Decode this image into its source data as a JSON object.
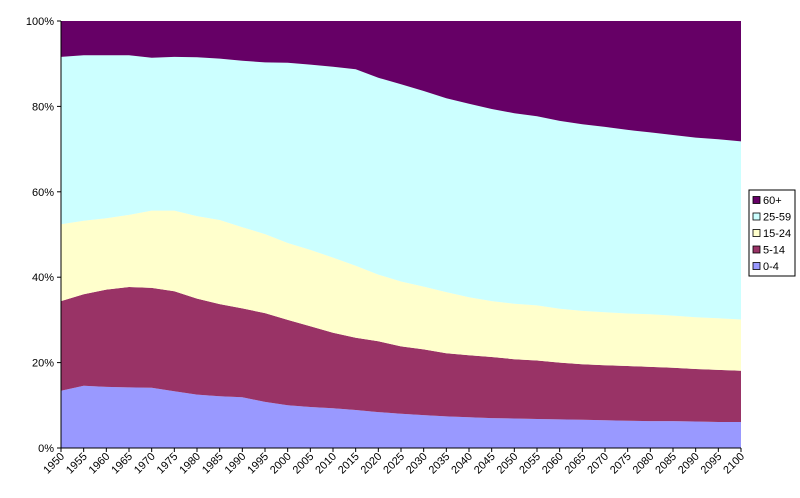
{
  "chart_data": {
    "type": "area",
    "stacking": "percent",
    "x": [
      1950,
      1955,
      1960,
      1965,
      1970,
      1975,
      1980,
      1985,
      1990,
      1995,
      2000,
      2005,
      2010,
      2015,
      2020,
      2025,
      2030,
      2035,
      2040,
      2045,
      2050,
      2055,
      2060,
      2065,
      2070,
      2075,
      2080,
      2085,
      2090,
      2095,
      2100
    ],
    "x_tick_labels": [
      "1950",
      "1955",
      "1960",
      "1965",
      "1970",
      "1975",
      "1980",
      "1985",
      "1990",
      "1995",
      "2000",
      "2005",
      "2010",
      "2015",
      "2020",
      "2025",
      "2030",
      "2035",
      "2040",
      "2045",
      "2050",
      "2055",
      "2060",
      "2065",
      "2070",
      "2075",
      "2080",
      "2085",
      "2090",
      "2095",
      "2100"
    ],
    "y_tick_labels": [
      "0%",
      "20%",
      "40%",
      "60%",
      "80%",
      "100%"
    ],
    "ylim": [
      0,
      100
    ],
    "grid": false,
    "legend_position": "right",
    "series": [
      {
        "name": "0-4",
        "color": "#9999ff",
        "values": [
          13.4,
          14.6,
          14.3,
          14.2,
          14.1,
          13.3,
          12.5,
          12.1,
          11.9,
          10.8,
          10.0,
          9.6,
          9.3,
          8.9,
          8.4,
          8.0,
          7.7,
          7.4,
          7.2,
          7.0,
          6.9,
          6.8,
          6.7,
          6.6,
          6.5,
          6.4,
          6.3,
          6.3,
          6.2,
          6.1,
          6.1
        ]
      },
      {
        "name": "5-14",
        "color": "#993366",
        "values": [
          21.0,
          21.4,
          22.8,
          23.5,
          23.4,
          23.4,
          22.5,
          21.6,
          20.8,
          20.8,
          20.0,
          18.9,
          17.7,
          16.9,
          16.6,
          15.8,
          15.4,
          14.8,
          14.5,
          14.3,
          13.9,
          13.7,
          13.3,
          13.0,
          12.9,
          12.8,
          12.7,
          12.5,
          12.3,
          12.2,
          12.0
        ]
      },
      {
        "name": "15-24",
        "color": "#ffffcc",
        "values": [
          18.0,
          17.2,
          16.7,
          16.9,
          18.1,
          18.9,
          19.3,
          19.7,
          19.0,
          18.5,
          18.0,
          17.9,
          17.6,
          16.9,
          15.6,
          15.2,
          14.7,
          14.3,
          13.6,
          13.1,
          13.0,
          12.9,
          12.6,
          12.5,
          12.4,
          12.3,
          12.3,
          12.2,
          12.1,
          12.1,
          12.0
        ]
      },
      {
        "name": "25-59",
        "color": "#ccffff",
        "values": [
          39.2,
          38.8,
          38.2,
          37.4,
          35.8,
          36.0,
          37.2,
          37.8,
          39.0,
          40.2,
          42.2,
          43.4,
          44.7,
          46.0,
          46.1,
          46.2,
          45.8,
          45.4,
          45.3,
          45.0,
          44.6,
          44.3,
          44.0,
          43.7,
          43.4,
          43.0,
          42.6,
          42.3,
          42.1,
          41.9,
          41.7
        ]
      },
      {
        "name": "60+",
        "color": "#660066",
        "values": [
          8.4,
          8.0,
          8.0,
          8.0,
          8.6,
          8.4,
          8.5,
          8.8,
          9.3,
          9.7,
          9.8,
          10.2,
          10.7,
          11.3,
          13.3,
          14.8,
          16.4,
          18.1,
          19.4,
          20.6,
          21.6,
          22.3,
          23.4,
          24.2,
          24.8,
          25.5,
          26.1,
          26.7,
          27.3,
          27.7,
          28.2
        ]
      }
    ]
  }
}
